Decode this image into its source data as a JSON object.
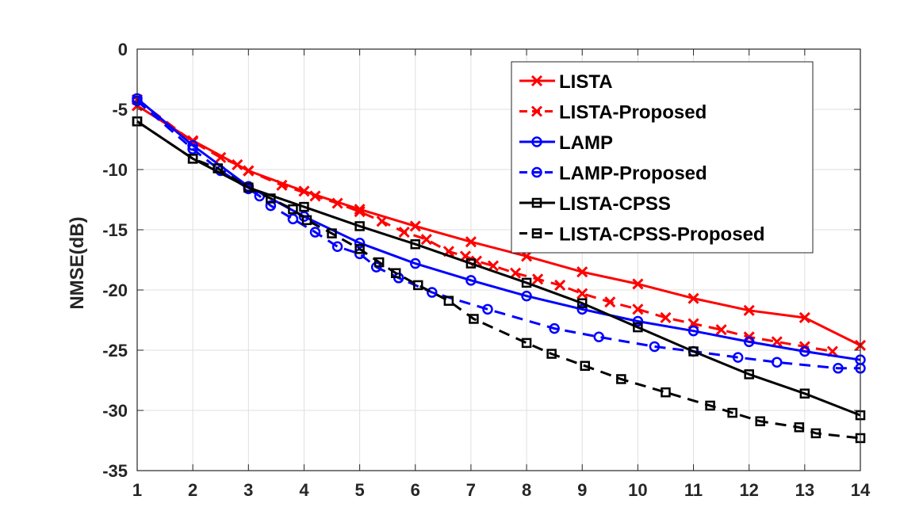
{
  "chart_data": {
    "type": "line",
    "title": "",
    "xlabel": "",
    "ylabel": "NMSE(dB)",
    "xlim": [
      1,
      14
    ],
    "ylim": [
      -35,
      0
    ],
    "xticks": [
      1,
      2,
      3,
      4,
      5,
      6,
      7,
      8,
      9,
      10,
      11,
      12,
      13,
      14
    ],
    "yticks": [
      0,
      -5,
      -10,
      -15,
      -20,
      -25,
      -30,
      -35
    ],
    "grid": true,
    "legend_position": "top-right",
    "series": [
      {
        "name": "LISTA",
        "color": "#ff0000",
        "line_style": "solid",
        "marker": "x",
        "x": [
          1,
          2,
          3,
          4,
          5,
          6,
          7,
          8,
          9,
          10,
          11,
          12,
          13,
          14
        ],
        "y": [
          -4.7,
          -7.6,
          -10.1,
          -11.8,
          -13.3,
          -14.7,
          -16.0,
          -17.2,
          -18.5,
          -19.5,
          -20.7,
          -21.7,
          -22.3,
          -24.6
        ]
      },
      {
        "name": "LISTA-Proposed",
        "color": "#ff0000",
        "line_style": "dashed",
        "marker": "x",
        "x": [
          1,
          2,
          2.5,
          2.8,
          3,
          3.6,
          4.2,
          4.6,
          5,
          5.4,
          5.8,
          6.2,
          6.6,
          6.9,
          7.1,
          7.4,
          7.8,
          8.2,
          8.6,
          9.0,
          9.5,
          10,
          10.5,
          11,
          11.5,
          12,
          12.5,
          13,
          13.5
        ],
        "y": [
          -4.2,
          -7.7,
          -9.0,
          -9.6,
          -10.1,
          -11.3,
          -12.2,
          -12.8,
          -13.5,
          -14.3,
          -15.2,
          -15.8,
          -16.8,
          -17.2,
          -17.6,
          -18.0,
          -18.6,
          -19.1,
          -19.6,
          -20.3,
          -21.0,
          -21.6,
          -22.3,
          -22.8,
          -23.3,
          -23.9,
          -24.3,
          -24.7,
          -25.1
        ]
      },
      {
        "name": "LAMP",
        "color": "#0000ff",
        "line_style": "solid",
        "marker": "o",
        "x": [
          1,
          2,
          3,
          4,
          5,
          6,
          7,
          8,
          9,
          10,
          11,
          12,
          13,
          14
        ],
        "y": [
          -4.1,
          -8.0,
          -11.4,
          -13.9,
          -16.1,
          -17.8,
          -19.2,
          -20.5,
          -21.6,
          -22.6,
          -23.4,
          -24.3,
          -25.1,
          -25.8
        ]
      },
      {
        "name": "LAMP-Proposed",
        "color": "#0000ff",
        "line_style": "dashed",
        "marker": "o",
        "x": [
          1,
          2,
          2.5,
          3,
          3.2,
          3.4,
          3.8,
          4.2,
          4.6,
          5,
          5.3,
          5.7,
          6.3,
          7.3,
          8.5,
          9.3,
          10.3,
          11.0,
          11.8,
          12.5,
          13.6,
          14
        ],
        "y": [
          -4.3,
          -8.3,
          -10.1,
          -11.6,
          -12.2,
          -13.0,
          -14.1,
          -15.2,
          -16.4,
          -17.0,
          -18.1,
          -19.0,
          -20.2,
          -21.6,
          -23.2,
          -23.9,
          -24.7,
          -25.1,
          -25.6,
          -26.0,
          -26.5,
          -26.5
        ]
      },
      {
        "name": "LISTA-CPSS",
        "color": "#000000",
        "line_style": "solid",
        "marker": "s",
        "x": [
          1,
          2,
          3,
          4,
          5,
          6,
          7,
          8,
          9,
          10,
          11,
          12,
          13,
          14
        ],
        "y": [
          -6.0,
          -9.1,
          -11.5,
          -13.1,
          -14.7,
          -16.2,
          -17.8,
          -19.4,
          -21.1,
          -23.1,
          -25.1,
          -27.0,
          -28.6,
          -30.4
        ]
      },
      {
        "name": "LISTA-CPSS-Proposed",
        "color": "#000000",
        "line_style": "dashed",
        "marker": "s",
        "x": [
          1,
          2,
          2.45,
          3,
          3.4,
          3.8,
          4.05,
          4.5,
          5,
          5.35,
          5.65,
          6.05,
          6.6,
          7.05,
          8,
          8.45,
          9.05,
          9.7,
          10.5,
          11.3,
          11.7,
          12.2,
          12.9,
          13.2,
          14
        ],
        "y": [
          -6.0,
          -9.1,
          -9.9,
          -11.5,
          -12.4,
          -13.3,
          -14.2,
          -15.3,
          -16.6,
          -17.7,
          -18.6,
          -19.6,
          -20.9,
          -22.4,
          -24.4,
          -25.3,
          -26.3,
          -27.4,
          -28.5,
          -29.6,
          -30.2,
          -30.9,
          -31.4,
          -31.9,
          -32.3
        ]
      }
    ]
  }
}
